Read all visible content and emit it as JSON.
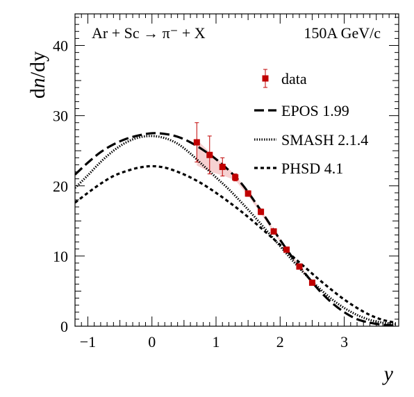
{
  "chart_data": {
    "type": "line",
    "ylabel": "dn/dy",
    "xlabel": "y",
    "xlim": [
      -1.2,
      3.85
    ],
    "ylim": [
      0,
      44.5
    ],
    "x_ticks": [
      -1,
      0,
      1,
      2,
      3
    ],
    "y_ticks": [
      0,
      10,
      20,
      30,
      40
    ],
    "grid": false,
    "legend_position": "right",
    "annotations": {
      "reaction": "Ar + Sc → π⁻ + X",
      "energy": "150A GeV/c"
    },
    "legend": [
      "data",
      "EPOS 1.99",
      "SMASH 2.1.4",
      "PHSD 4.1"
    ],
    "data_points": {
      "name": "data",
      "color": "#c00000",
      "band_color": "#f4c9c9",
      "x": [
        0.7,
        0.9,
        1.1,
        1.3,
        1.5,
        1.7,
        1.9,
        2.1,
        2.3,
        2.5
      ],
      "y": [
        26.2,
        24.4,
        22.7,
        21.2,
        18.9,
        16.3,
        13.5,
        10.9,
        8.5,
        6.2
      ],
      "err": [
        2.8,
        2.7,
        1.3,
        0.5,
        0.4,
        0.4,
        0.3,
        0.3,
        0.3,
        0.3
      ],
      "band": [
        [
          0.7,
          22.9,
          26.6
        ],
        [
          0.9,
          22.0,
          24.8
        ],
        [
          1.1,
          21.5,
          23.2
        ],
        [
          1.3,
          20.8,
          21.6
        ],
        [
          1.5,
          18.6,
          19.2
        ],
        [
          1.7,
          16.0,
          16.6
        ],
        [
          1.9,
          13.3,
          13.8
        ],
        [
          2.1,
          10.7,
          11.1
        ],
        [
          2.3,
          8.3,
          8.7
        ],
        [
          2.5,
          6.0,
          6.4
        ]
      ]
    },
    "series": [
      {
        "name": "EPOS 1.99",
        "style": "long-dash",
        "x": [
          -1.2,
          -1.0,
          -0.8,
          -0.6,
          -0.4,
          -0.2,
          0.0,
          0.2,
          0.4,
          0.6,
          0.8,
          1.0,
          1.2,
          1.4,
          1.6,
          1.8,
          2.0,
          2.2,
          2.4,
          2.6,
          2.8,
          3.0,
          3.2,
          3.4,
          3.6,
          3.8
        ],
        "y": [
          21.6,
          23.3,
          24.8,
          25.9,
          26.7,
          27.2,
          27.5,
          27.4,
          27.0,
          26.2,
          25.1,
          23.8,
          22.2,
          20.3,
          17.8,
          15.1,
          12.3,
          9.7,
          7.4,
          5.2,
          3.4,
          2.0,
          1.0,
          0.5,
          0.2,
          0.1
        ]
      },
      {
        "name": "SMASH 2.1.4",
        "style": "dotted",
        "x": [
          -1.2,
          -1.0,
          -0.8,
          -0.6,
          -0.4,
          -0.2,
          0.0,
          0.2,
          0.4,
          0.6,
          0.8,
          1.0,
          1.2,
          1.4,
          1.6,
          1.8,
          2.0,
          2.2,
          2.4,
          2.6,
          2.8,
          3.0,
          3.2,
          3.4,
          3.6,
          3.8
        ],
        "y": [
          19.7,
          21.5,
          23.4,
          25.0,
          26.2,
          26.9,
          27.1,
          26.8,
          26.0,
          24.6,
          22.9,
          21.2,
          19.5,
          17.6,
          15.6,
          13.5,
          11.4,
          9.3,
          7.3,
          5.5,
          3.9,
          2.6,
          1.6,
          0.9,
          0.5,
          0.3
        ]
      },
      {
        "name": "PHSD 4.1",
        "style": "short-dash",
        "x": [
          -1.2,
          -1.0,
          -0.8,
          -0.6,
          -0.4,
          -0.2,
          0.0,
          0.2,
          0.4,
          0.6,
          0.8,
          1.0,
          1.2,
          1.4,
          1.6,
          1.8,
          2.0,
          2.2,
          2.4,
          2.6,
          2.8,
          3.0,
          3.2,
          3.4,
          3.6,
          3.8
        ],
        "y": [
          17.6,
          19.0,
          20.3,
          21.4,
          22.1,
          22.6,
          22.8,
          22.6,
          22.0,
          21.2,
          20.2,
          19.0,
          17.7,
          16.3,
          14.8,
          13.2,
          11.6,
          9.9,
          8.3,
          6.7,
          5.2,
          3.8,
          2.6,
          1.6,
          0.9,
          0.5
        ]
      }
    ]
  }
}
